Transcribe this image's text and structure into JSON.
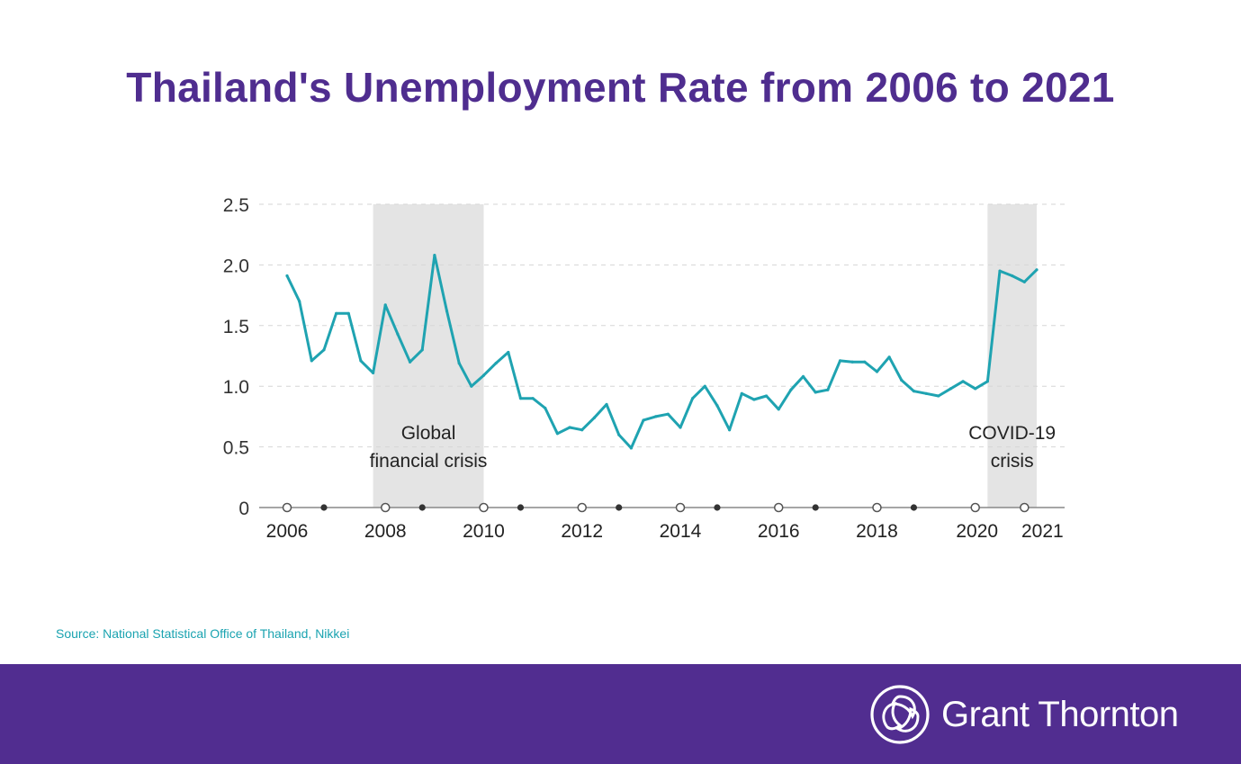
{
  "title": "Thailand's Unemployment Rate from 2006 to 2021",
  "source": "Source: National Statistical Office of Thailand, Nikkei",
  "brand": "Grant Thornton",
  "colors": {
    "title": "#4f2d8f",
    "line": "#1fa3b1",
    "band": "#e4e4e4",
    "footer": "#512d90",
    "source": "#1aa3b0"
  },
  "chart_data": {
    "type": "line",
    "title": "Thailand's Unemployment Rate from 2006 to 2021",
    "xlabel": "",
    "ylabel": "",
    "ylim": [
      0,
      2.5
    ],
    "xlim": [
      2006,
      2021.5
    ],
    "yticks": [
      {
        "value": 0,
        "label": "0"
      },
      {
        "value": 0.5,
        "label": "0.5"
      },
      {
        "value": 1,
        "label": "1.0"
      },
      {
        "value": 1.5,
        "label": "1.5"
      },
      {
        "value": 2,
        "label": "2.0"
      },
      {
        "value": 2.5,
        "label": "2.5"
      }
    ],
    "xticks": [
      {
        "value": 2006,
        "label": "2006"
      },
      {
        "value": 2008,
        "label": "2008"
      },
      {
        "value": 2010,
        "label": "2010"
      },
      {
        "value": 2012,
        "label": "2012"
      },
      {
        "value": 2014,
        "label": "2014"
      },
      {
        "value": 2016,
        "label": "2016"
      },
      {
        "value": 2018,
        "label": "2018"
      },
      {
        "value": 2020,
        "label": "2020"
      },
      {
        "value": 2021,
        "label": "2021"
      }
    ],
    "minor_ticks": [
      2006.75,
      2008.75,
      2010.75,
      2012.75,
      2014.75,
      2016.75,
      2018.75
    ],
    "grid": true,
    "shaded_regions": [
      {
        "from": 2007.75,
        "to": 2010,
        "label_lines": [
          "Global",
          "financial crisis"
        ]
      },
      {
        "from": 2020.25,
        "to": 2021.25,
        "label_lines": [
          "COVID-19",
          "crisis"
        ]
      }
    ],
    "series": [
      {
        "name": "Unemployment rate",
        "x": [
          2006.0,
          2006.25,
          2006.5,
          2006.75,
          2007.0,
          2007.25,
          2007.5,
          2007.75,
          2008.0,
          2008.25,
          2008.5,
          2008.75,
          2009.0,
          2009.25,
          2009.5,
          2009.75,
          2010.0,
          2010.25,
          2010.5,
          2010.75,
          2011.0,
          2011.25,
          2011.5,
          2011.75,
          2012.0,
          2012.25,
          2012.5,
          2012.75,
          2013.0,
          2013.25,
          2013.5,
          2013.75,
          2014.0,
          2014.25,
          2014.5,
          2014.75,
          2015.0,
          2015.25,
          2015.5,
          2015.75,
          2016.0,
          2016.25,
          2016.5,
          2016.75,
          2017.0,
          2017.25,
          2017.5,
          2017.75,
          2018.0,
          2018.25,
          2018.5,
          2018.75,
          2019.0,
          2019.25,
          2019.5,
          2019.75,
          2020.0,
          2020.25,
          2020.5,
          2020.75,
          2021.0,
          2021.25
        ],
        "values": [
          1.91,
          1.7,
          1.21,
          1.3,
          1.6,
          1.6,
          1.21,
          1.11,
          1.67,
          1.43,
          1.2,
          1.3,
          2.08,
          1.62,
          1.19,
          1.0,
          1.09,
          1.19,
          1.28,
          0.9,
          0.9,
          0.82,
          0.61,
          0.66,
          0.64,
          0.74,
          0.85,
          0.6,
          0.49,
          0.72,
          0.75,
          0.77,
          0.66,
          0.9,
          1.0,
          0.84,
          0.64,
          0.94,
          0.89,
          0.92,
          0.81,
          0.97,
          1.08,
          0.95,
          0.97,
          1.21,
          1.2,
          1.2,
          1.12,
          1.24,
          1.05,
          0.96,
          0.94,
          0.92,
          0.98,
          1.04,
          0.98,
          1.04,
          1.95,
          1.91,
          1.86,
          1.96
        ]
      }
    ]
  }
}
